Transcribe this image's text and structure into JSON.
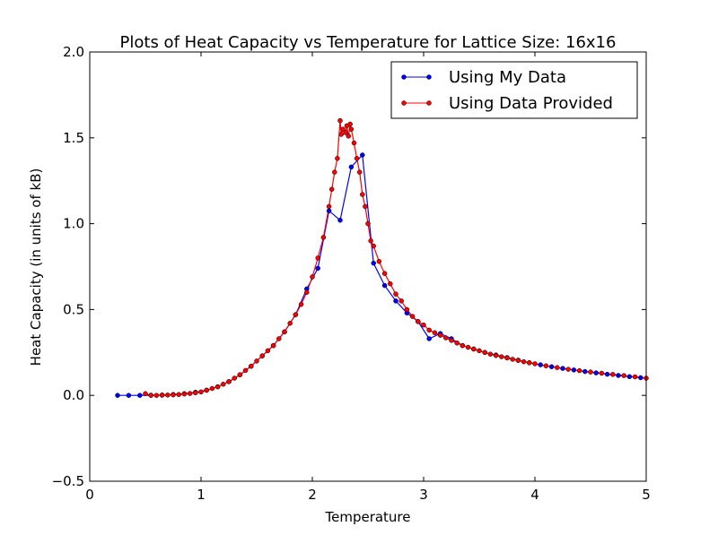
{
  "chart_data": {
    "type": "line",
    "title": "Plots of Heat Capacity vs Temperature for Lattice Size: 16x16",
    "xlabel": "Temperature",
    "ylabel": "Heat Capacity (in units of kB)",
    "xlim": [
      0,
      5
    ],
    "ylim": [
      -0.5,
      2.0
    ],
    "xticks": [
      0,
      1,
      2,
      3,
      4,
      5
    ],
    "xtick_labels": [
      "0",
      "1",
      "2",
      "3",
      "4",
      "5"
    ],
    "yticks": [
      -0.5,
      0.0,
      0.5,
      1.0,
      1.5,
      2.0
    ],
    "ytick_labels": [
      "−0.5",
      "0.0",
      "0.5",
      "1.0",
      "1.5",
      "2.0"
    ],
    "grid": false,
    "legend_position": "top-right",
    "series": [
      {
        "name": "Using My Data",
        "color": "#0000ff",
        "marker": "o",
        "x": [
          0.25,
          0.35,
          0.45,
          0.55,
          0.65,
          0.75,
          0.85,
          0.95,
          1.05,
          1.15,
          1.25,
          1.35,
          1.45,
          1.55,
          1.65,
          1.75,
          1.85,
          1.95,
          2.05,
          2.15,
          2.25,
          2.35,
          2.45,
          2.55,
          2.65,
          2.75,
          2.85,
          2.95,
          3.05,
          3.15,
          3.25,
          3.35,
          3.45,
          3.55,
          3.65,
          3.75,
          3.85,
          3.95,
          4.05,
          4.15,
          4.25,
          4.35,
          4.45,
          4.55,
          4.65,
          4.75,
          4.85,
          4.95
        ],
        "y": [
          0,
          0,
          0,
          0.001,
          0.002,
          0.005,
          0.01,
          0.018,
          0.03,
          0.05,
          0.08,
          0.12,
          0.17,
          0.23,
          0.29,
          0.37,
          0.47,
          0.62,
          0.74,
          1.075,
          1.02,
          1.33,
          1.4,
          0.77,
          0.64,
          0.55,
          0.48,
          0.43,
          0.33,
          0.36,
          0.33,
          0.29,
          0.27,
          0.25,
          0.235,
          0.22,
          0.205,
          0.19,
          0.178,
          0.167,
          0.157,
          0.148,
          0.139,
          0.131,
          0.123,
          0.116,
          0.109,
          0.103
        ]
      },
      {
        "name": "Using Data Provided",
        "color": "#ff0000",
        "marker": "o",
        "x": [
          0.5,
          0.55,
          0.6,
          0.65,
          0.7,
          0.75,
          0.8,
          0.85,
          0.9,
          0.95,
          1.0,
          1.05,
          1.1,
          1.15,
          1.2,
          1.25,
          1.3,
          1.35,
          1.4,
          1.45,
          1.5,
          1.55,
          1.6,
          1.65,
          1.7,
          1.75,
          1.8,
          1.85,
          1.9,
          1.95,
          2.0,
          2.05,
          2.1,
          2.15,
          2.175,
          2.2,
          2.225,
          2.25,
          2.26,
          2.275,
          2.3,
          2.31,
          2.325,
          2.34,
          2.35,
          2.375,
          2.4,
          2.425,
          2.45,
          2.475,
          2.5,
          2.525,
          2.55,
          2.6,
          2.65,
          2.7,
          2.75,
          2.8,
          2.85,
          2.9,
          2.95,
          3.0,
          3.05,
          3.1,
          3.15,
          3.2,
          3.25,
          3.3,
          3.35,
          3.4,
          3.45,
          3.5,
          3.55,
          3.6,
          3.65,
          3.7,
          3.75,
          3.8,
          3.85,
          3.9,
          3.95,
          4.0,
          4.1,
          4.2,
          4.3,
          4.4,
          4.5,
          4.6,
          4.7,
          4.8,
          4.9,
          5.0
        ],
        "y": [
          0.01,
          0.0,
          0.0,
          0.001,
          0.002,
          0.003,
          0.005,
          0.008,
          0.011,
          0.015,
          0.02,
          0.03,
          0.04,
          0.05,
          0.065,
          0.08,
          0.1,
          0.12,
          0.145,
          0.17,
          0.2,
          0.23,
          0.26,
          0.29,
          0.33,
          0.37,
          0.42,
          0.47,
          0.53,
          0.6,
          0.69,
          0.8,
          0.92,
          1.1,
          1.2,
          1.3,
          1.38,
          1.6,
          1.52,
          1.55,
          1.53,
          1.57,
          1.51,
          1.58,
          1.55,
          1.47,
          1.38,
          1.3,
          1.17,
          1.1,
          1.0,
          0.9,
          0.87,
          0.78,
          0.71,
          0.65,
          0.59,
          0.55,
          0.5,
          0.46,
          0.43,
          0.41,
          0.38,
          0.365,
          0.35,
          0.335,
          0.32,
          0.305,
          0.29,
          0.28,
          0.27,
          0.26,
          0.25,
          0.24,
          0.232,
          0.225,
          0.218,
          0.21,
          0.203,
          0.196,
          0.19,
          0.184,
          0.172,
          0.162,
          0.152,
          0.144,
          0.136,
          0.129,
          0.122,
          0.115,
          0.108,
          0.1
        ]
      }
    ]
  }
}
